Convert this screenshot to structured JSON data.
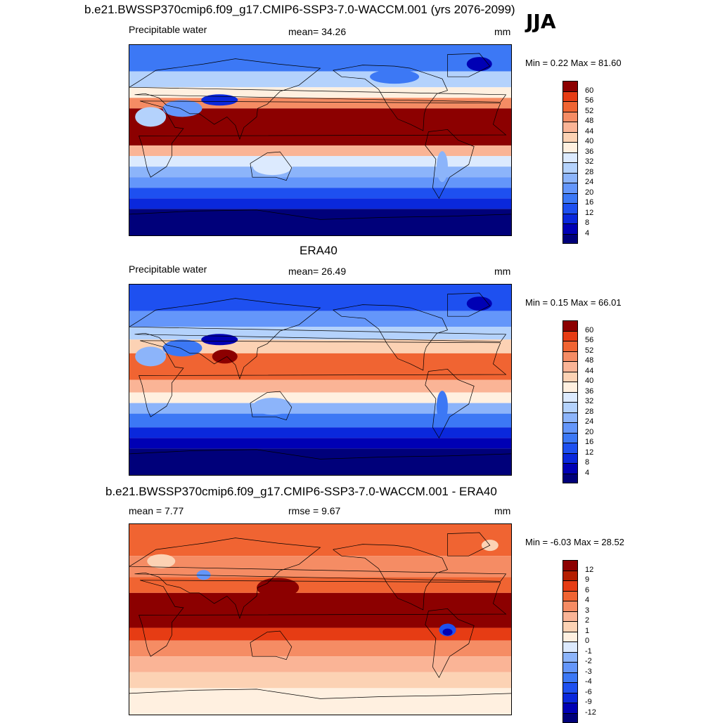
{
  "season_label": "JJA",
  "panels": [
    {
      "title": "b.e21.BWSSP370cmip6.f09_g17.CMIP6-SSP3-7.0-WACCM.001 (yrs 2076-2099)",
      "left_label": "Precipitable water",
      "center_label": "mean=  34.26",
      "units": "mm",
      "minmax": "Min =   0.22 Max =  81.60"
    },
    {
      "title": "ERA40",
      "left_label": "Precipitable water",
      "center_label": "mean=  26.49",
      "units": "mm",
      "minmax": "Min =   0.15 Max =  66.01"
    },
    {
      "title": "b.e21.BWSSP370cmip6.f09_g17.CMIP6-SSP3-7.0-WACCM.001 - ERA40",
      "left_label": "mean =   7.77",
      "center_label": "rmse =    9.67",
      "units": "mm",
      "minmax": "Min =  -6.03 Max =  28.52"
    }
  ],
  "chart_data": [
    {
      "type": "heatmap",
      "title": "b.e21.BWSSP370cmip6.f09_g17.CMIP6-SSP3-7.0-WACCM.001 (yrs 2076-2099)",
      "variable": "Precipitable water",
      "units": "mm",
      "mean": 34.26,
      "min": 0.22,
      "max": 81.6,
      "colorbar_levels": [
        4,
        8,
        12,
        16,
        20,
        24,
        28,
        32,
        36,
        40,
        44,
        48,
        52,
        56,
        60
      ],
      "colorbar_colors": [
        "#00007a",
        "#0000b4",
        "#0a28dc",
        "#1e50f0",
        "#3c78f5",
        "#6496fa",
        "#8cb4fa",
        "#b4d2fc",
        "#dceafe",
        "#fff0e0",
        "#fcd2b4",
        "#fab496",
        "#f58c64",
        "#f06432",
        "#e63c14",
        "#8c0000"
      ]
    },
    {
      "type": "heatmap",
      "title": "ERA40",
      "variable": "Precipitable water",
      "units": "mm",
      "mean": 26.49,
      "min": 0.15,
      "max": 66.01,
      "colorbar_levels": [
        4,
        8,
        12,
        16,
        20,
        24,
        28,
        32,
        36,
        40,
        44,
        48,
        52,
        56,
        60
      ],
      "colorbar_colors": [
        "#00007a",
        "#0000b4",
        "#0a28dc",
        "#1e50f0",
        "#3c78f5",
        "#6496fa",
        "#8cb4fa",
        "#b4d2fc",
        "#dceafe",
        "#fff0e0",
        "#fcd2b4",
        "#fab496",
        "#f58c64",
        "#f06432",
        "#e63c14",
        "#8c0000"
      ]
    },
    {
      "type": "heatmap",
      "title": "b.e21.BWSSP370cmip6.f09_g17.CMIP6-SSP3-7.0-WACCM.001 - ERA40",
      "units": "mm",
      "mean": 7.77,
      "rmse": 9.67,
      "min": -6.03,
      "max": 28.52,
      "colorbar_levels": [
        -12,
        -9,
        -6,
        -4,
        -3,
        -2,
        -1,
        0,
        1,
        2,
        3,
        4,
        6,
        9,
        12
      ],
      "colorbar_colors": [
        "#00007a",
        "#0000b4",
        "#0a28dc",
        "#1e50f0",
        "#3c78f5",
        "#6496fa",
        "#8cb4fa",
        "#dceafe",
        "#fff0e0",
        "#fcd2b4",
        "#fab496",
        "#f58c64",
        "#f06432",
        "#e63c14",
        "#b41e00",
        "#8c0000"
      ]
    }
  ]
}
